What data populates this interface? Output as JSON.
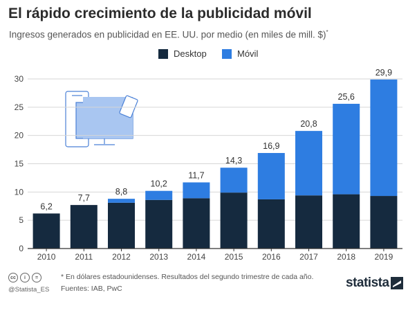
{
  "title": "El rápido crecimiento de la publicidad móvil",
  "subtitle": "Ingresos generados en publicidad en EE. UU. por medio (en miles de mill. $)",
  "subtitle_marker": "*",
  "legend": [
    {
      "label": "Desktop",
      "color": "#152a3f"
    },
    {
      "label": "Móvil",
      "color": "#2e7de1"
    }
  ],
  "chart_data": {
    "type": "bar",
    "stacked": true,
    "categories": [
      "2010",
      "2011",
      "2012",
      "2013",
      "2014",
      "2015",
      "2016",
      "2017",
      "2018",
      "2019"
    ],
    "series": [
      {
        "name": "Desktop",
        "color": "#152a3f",
        "values": [
          6.2,
          7.7,
          8.1,
          8.6,
          8.9,
          9.9,
          8.7,
          9.4,
          9.6,
          9.3
        ]
      },
      {
        "name": "Móvil",
        "color": "#2e7de1",
        "values": [
          0.0,
          0.0,
          0.7,
          1.6,
          2.8,
          4.4,
          8.2,
          11.4,
          16.0,
          20.6
        ]
      }
    ],
    "totals": [
      6.2,
      7.7,
      8.8,
      10.2,
      11.7,
      14.3,
      16.9,
      20.8,
      25.6,
      29.9
    ],
    "total_labels": [
      "6,2",
      "7,7",
      "8,8",
      "10,2",
      "11,7",
      "14,3",
      "16,9",
      "20,8",
      "25,6",
      "29,9"
    ],
    "y_ticks": [
      0,
      5,
      10,
      15,
      20,
      25,
      30
    ],
    "ylim": [
      0,
      30
    ],
    "grid": true,
    "legend_position": "top-center"
  },
  "footer": {
    "footnote": "* En dólares estadounidenses. Resultados del segundo trimestre de cada año.",
    "sources": "Fuentes: IAB, PwC",
    "handle": "@Statista_ES",
    "cc_icons": [
      "cc",
      "i",
      "="
    ],
    "brand": "statista"
  }
}
